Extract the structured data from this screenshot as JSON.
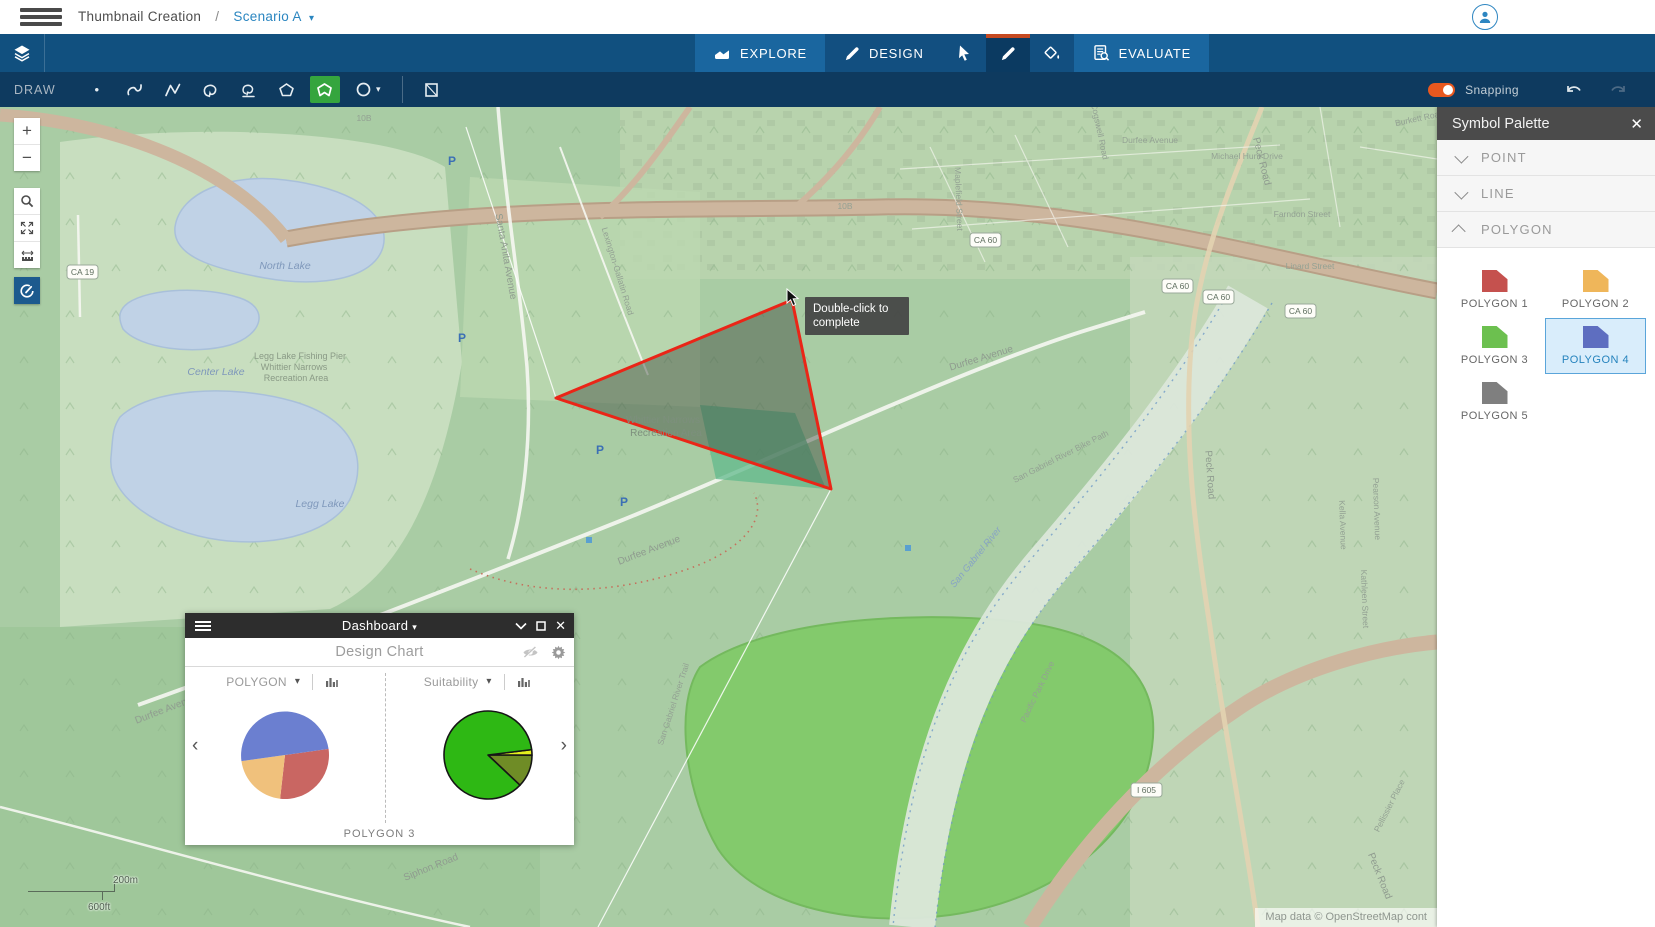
{
  "app": {
    "breadcrumb": {
      "root": "Thumbnail Creation",
      "separator": "/",
      "current": "Scenario A"
    },
    "colors": {
      "nav_bar": "#11507f",
      "nav_tile": "#1a669f",
      "active_tool": "#0b3a61",
      "accent_orange": "#c64a21",
      "draw_bar": "#0e3a5f",
      "active_green": "#35a53e",
      "snapping_toggle": "#e8581f",
      "panel_header": "#4b4b4b",
      "selection_blue": "#5aa5da"
    }
  },
  "nav": {
    "explore": "EXPLORE",
    "design": "DESIGN",
    "evaluate": "EVALUATE"
  },
  "draw_toolbar": {
    "label": "DRAW",
    "snapping_label": "Snapping",
    "snapping_on": true
  },
  "icons": {
    "close": "✕",
    "caret_down": "▾",
    "chevron_left": "‹",
    "chevron_right": "›",
    "plus": "+",
    "minus": "−",
    "measure": "↔",
    "point_dot": "•"
  },
  "map": {
    "tooltip": {
      "line1": "Double-click to",
      "line2": "complete"
    },
    "scalebar": {
      "metric": "200m",
      "imperial": "600ft"
    },
    "attribution": "Map data © OpenStreetMap cont",
    "shields": [
      {
        "text": "CA 19"
      },
      {
        "text": "CA 60"
      },
      {
        "text": "CA 60"
      },
      {
        "text": "CA 60"
      },
      {
        "text": "CA 60"
      },
      {
        "text": "I 605"
      }
    ],
    "labels": [
      {
        "text": "North Lake"
      },
      {
        "text": "Legg Lake Fishing Pier"
      },
      {
        "text": "Whittier Narrows"
      },
      {
        "text": "Recreation Area"
      },
      {
        "text": "Center Lake"
      },
      {
        "text": "Legg Lake"
      },
      {
        "text": "Whittier Narrows"
      },
      {
        "text": "Recreation Area"
      },
      {
        "text": "Durfee Avenue"
      },
      {
        "text": "Durfee Avenue"
      },
      {
        "text": "Durfee Aven"
      },
      {
        "text": "Santa Anita Avenue"
      },
      {
        "text": "Peck Road"
      },
      {
        "text": "Peck Road"
      },
      {
        "text": "Peck Road"
      },
      {
        "text": "San Gabriel River"
      },
      {
        "text": "San Gabriel River Trail"
      },
      {
        "text": "San Gabriel River Bike Path"
      },
      {
        "text": "Michael Hunt Drive"
      },
      {
        "text": "Maplefield Street"
      },
      {
        "text": "Farndon Street"
      },
      {
        "text": "Linard Street"
      },
      {
        "text": "Pellissier Place"
      },
      {
        "text": "Pacific Park Drive"
      },
      {
        "text": "Kella Avenue"
      },
      {
        "text": "Pearson Avenue"
      },
      {
        "text": "Kathleen Street"
      },
      {
        "text": "Siphon Road"
      },
      {
        "text": "Cogswell Road"
      },
      {
        "text": "Burkett Road"
      },
      {
        "text": "Durfee Avenue"
      },
      {
        "text": "Lexington-Gallatin Road"
      },
      {
        "text": "10B"
      },
      {
        "text": "10B"
      },
      {
        "text": "P"
      },
      {
        "text": "P"
      },
      {
        "text": "P"
      },
      {
        "text": "P"
      }
    ]
  },
  "dashboard": {
    "title": "Dashboard",
    "subtitle": "Design Chart",
    "footer": "POLYGON 3"
  },
  "chart_data": [
    {
      "type": "pie",
      "selector_label": "POLYGON",
      "title": "POLYGON",
      "footer_label": "POLYGON 3",
      "legend": "none",
      "start_angle_deg": 8,
      "direction": "clockwise",
      "slices": [
        {
          "label": "red",
          "value": 29,
          "color": "#c96662"
        },
        {
          "label": "orange",
          "value": 21,
          "color": "#f0c17c"
        },
        {
          "label": "blue",
          "value": 50,
          "color": "#6b7fd0"
        }
      ]
    },
    {
      "type": "pie",
      "selector_label": "Suitability",
      "title": "Suitability",
      "legend": "none",
      "start_angle_deg": 7,
      "direction": "clockwise",
      "outline": "#161616",
      "outline_width": 1.6,
      "slices": [
        {
          "label": "yellow",
          "value": 2,
          "color": "#e3ef1e"
        },
        {
          "label": "olive",
          "value": 12,
          "color": "#6f8c26"
        },
        {
          "label": "green",
          "value": 86,
          "color": "#2eb814"
        }
      ]
    }
  ],
  "palette": {
    "title": "Symbol Palette",
    "sections": [
      {
        "label": "POINT",
        "expanded": false
      },
      {
        "label": "LINE",
        "expanded": false
      },
      {
        "label": "POLYGON",
        "expanded": true
      }
    ],
    "items": [
      {
        "label": "POLYGON 1",
        "color": "#c5514e"
      },
      {
        "label": "POLYGON 2",
        "color": "#efb65a"
      },
      {
        "label": "POLYGON 3",
        "color": "#6cc04f"
      },
      {
        "label": "POLYGON 4",
        "color": "#5e6ec0",
        "selected": true
      },
      {
        "label": "POLYGON 5",
        "color": "#7f7f7f"
      }
    ]
  }
}
